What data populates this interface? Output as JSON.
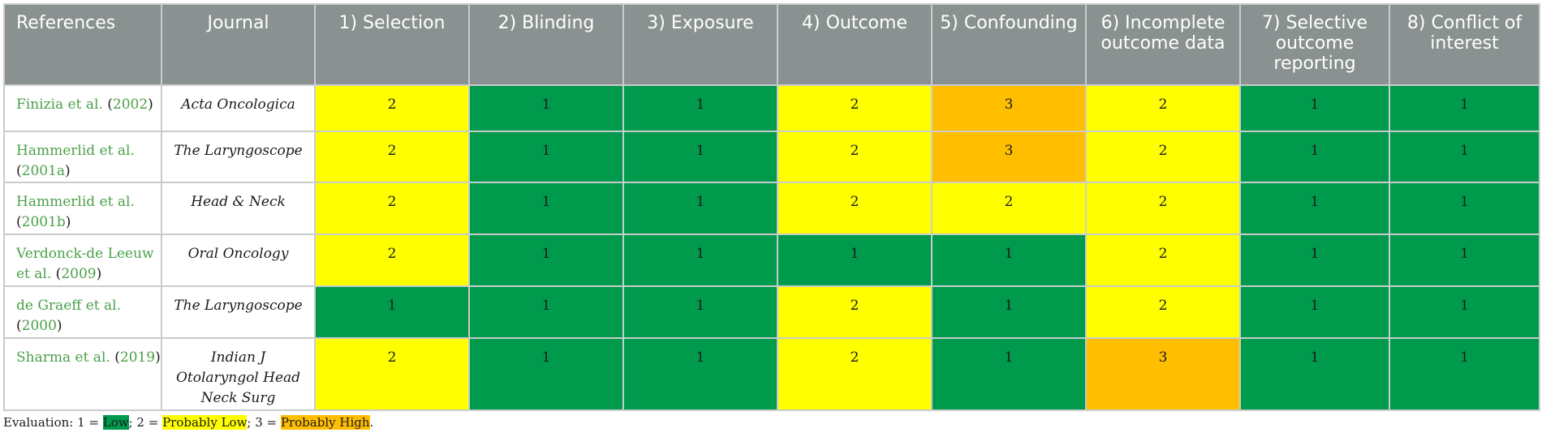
{
  "colors": {
    "score_1": "#009a4c",
    "score_2": "#ffff00",
    "score_3": "#ffbe00",
    "header_bg": "#8a9191",
    "reference_link": "#4aa04a"
  },
  "table": {
    "headers": {
      "references": "References",
      "journal": "Journal",
      "criteria": [
        "1) Selection",
        "2) Blinding",
        "3) Exposure",
        "4) Outcome",
        "5) Confounding",
        "6) Incomplete outcome data",
        "7) Selective outcome reporting",
        "8) Conflict of interest"
      ]
    },
    "rows": [
      {
        "author": "Finizia et al.",
        "year": "2002",
        "journal": "Acta Oncologica",
        "scores": [
          2,
          1,
          1,
          2,
          3,
          2,
          1,
          1
        ]
      },
      {
        "author": "Hammerlid et al.",
        "year": "2001a",
        "journal": "The Laryngoscope",
        "scores": [
          2,
          1,
          1,
          2,
          3,
          2,
          1,
          1
        ]
      },
      {
        "author": "Hammerlid et al.",
        "year": "2001b",
        "journal": "Head & Neck",
        "scores": [
          2,
          1,
          1,
          2,
          2,
          2,
          1,
          1
        ]
      },
      {
        "author": "Verdonck-de Leeuw et al.",
        "year": "2009",
        "journal": "Oral Oncology",
        "scores": [
          2,
          1,
          1,
          1,
          1,
          2,
          1,
          1
        ]
      },
      {
        "author": "de Graeff et al.",
        "year": "2000",
        "journal": "The Laryngoscope",
        "scores": [
          1,
          1,
          1,
          2,
          1,
          2,
          1,
          1
        ]
      },
      {
        "author": "Sharma et al.",
        "year": "2019",
        "journal": "Indian J Otolaryngol Head Neck Surg",
        "scores": [
          2,
          1,
          1,
          2,
          1,
          3,
          1,
          1
        ]
      }
    ]
  },
  "caption": {
    "prefix": "Evaluation: 1 = ",
    "low": "Low",
    "sep1": "; 2 = ",
    "probably_low": "Probably Low",
    "sep2": "; 3 = ",
    "probably_high": "Probably High",
    "suffix": "."
  }
}
